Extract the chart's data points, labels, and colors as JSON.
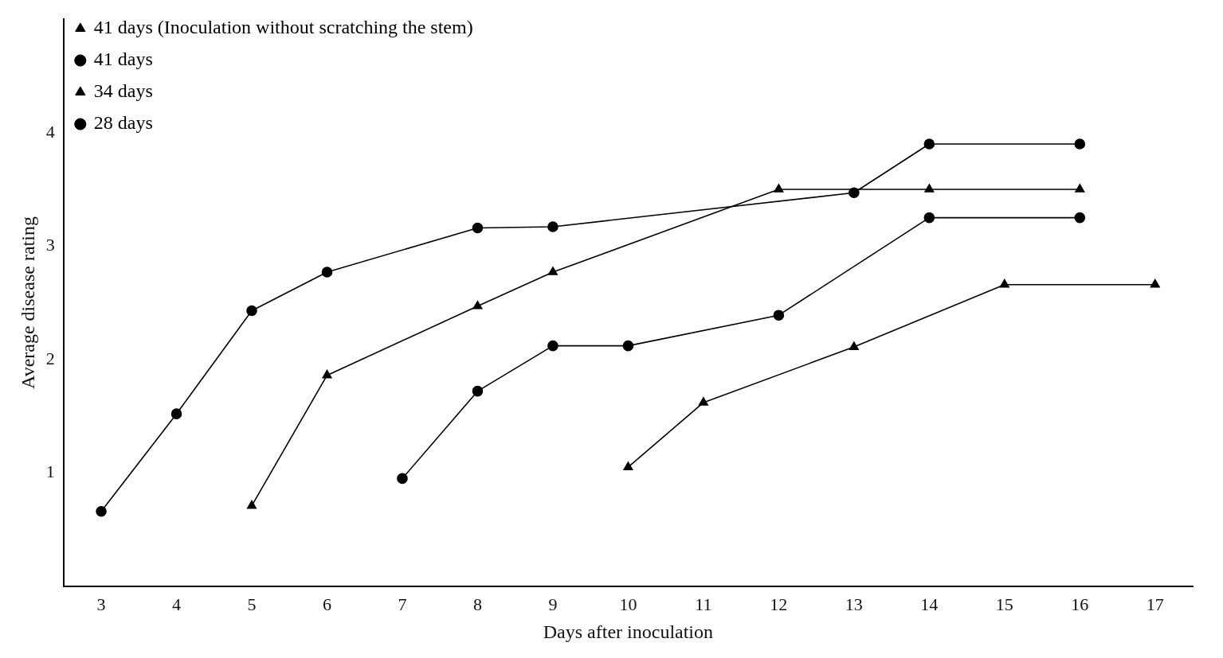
{
  "chart_data": {
    "type": "line",
    "xlabel": "Days after inoculation",
    "ylabel": "Average disease rating",
    "xlim": [
      2.5,
      17.5
    ],
    "xticks": [
      3,
      4,
      5,
      6,
      7,
      8,
      9,
      10,
      11,
      12,
      13,
      14,
      15,
      16,
      17
    ],
    "ylim": [
      0,
      5
    ],
    "yticks": [
      1,
      2,
      3,
      4
    ],
    "grid": false,
    "legend": "top left",
    "line_style": "solid",
    "series": [
      {
        "name": "41 days (Inoculation without scratching the stem)",
        "color": "#000000",
        "marker": "triangle",
        "x": [
          10,
          11,
          13,
          15,
          17
        ],
        "values": [
          1.05,
          1.62,
          2.11,
          2.66,
          2.66
        ]
      },
      {
        "name": "41 days",
        "color": "#000000",
        "marker": "circle",
        "x": [
          7,
          8,
          9,
          10,
          12,
          14,
          16
        ],
        "values": [
          0.95,
          1.72,
          2.12,
          2.12,
          2.39,
          3.25,
          3.25
        ]
      },
      {
        "name": "34 days",
        "color": "#000000",
        "marker": "triangle",
        "x": [
          5,
          6,
          8,
          9,
          12,
          14,
          16
        ],
        "values": [
          0.71,
          1.86,
          2.47,
          2.77,
          3.5,
          3.5,
          3.5
        ]
      },
      {
        "name": "28 days",
        "color": "#000000",
        "marker": "circle",
        "x": [
          3,
          4,
          5,
          6,
          8,
          9,
          13,
          14,
          16
        ],
        "values": [
          0.66,
          1.52,
          2.43,
          2.77,
          3.16,
          3.17,
          3.47,
          3.9,
          3.9
        ]
      }
    ]
  }
}
